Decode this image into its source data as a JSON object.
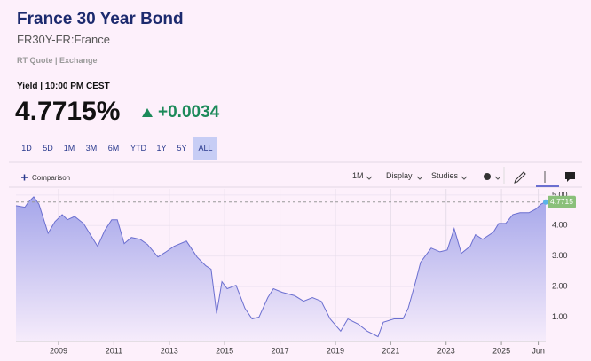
{
  "header": {
    "title": "France 30 Year Bond",
    "symbol": "FR30Y-FR:France",
    "quote_source": "RT Quote | Exchange",
    "yield_time": "Yield | 10:00 PM CEST",
    "price": "4.7715%",
    "change": "+0.0034"
  },
  "range_buttons": [
    "1D",
    "5D",
    "1M",
    "3M",
    "6M",
    "YTD",
    "1Y",
    "5Y",
    "ALL"
  ],
  "toolbar": {
    "comparison": "Comparison",
    "interval": "1M",
    "display": "Display",
    "studies": "Studies"
  },
  "chart_data": {
    "type": "area",
    "color": "#6b6fd0",
    "x": [
      2007.46,
      2007.78,
      2007.91,
      2008.1,
      2008.29,
      2008.62,
      2008.87,
      2009.13,
      2009.32,
      2009.58,
      2009.9,
      2010.15,
      2010.41,
      2010.67,
      2010.92,
      2011.12,
      2011.37,
      2011.63,
      2011.95,
      2012.21,
      2012.59,
      2012.85,
      2013.17,
      2013.62,
      2014.0,
      2014.32,
      2014.51,
      2014.71,
      2014.9,
      2015.09,
      2015.41,
      2015.73,
      2015.99,
      2016.24,
      2016.56,
      2016.76,
      2017.08,
      2017.53,
      2017.85,
      2018.17,
      2018.49,
      2018.81,
      2019.19,
      2019.45,
      2019.83,
      2020.15,
      2020.54,
      2020.73,
      2021.12,
      2021.44,
      2021.63,
      2021.88,
      2022.08,
      2022.46,
      2022.78,
      2023.04,
      2023.29,
      2023.55,
      2023.87,
      2024.06,
      2024.32,
      2024.71,
      2024.9,
      2025.15,
      2025.41,
      2025.67,
      2025.99,
      2026.24,
      2026.44,
      2026.6
    ],
    "values": [
      4.65,
      4.6,
      4.77,
      4.94,
      4.7,
      3.75,
      4.13,
      4.36,
      4.19,
      4.3,
      4.07,
      3.7,
      3.32,
      3.84,
      4.19,
      4.19,
      3.41,
      3.61,
      3.55,
      3.38,
      2.97,
      3.12,
      3.32,
      3.49,
      2.97,
      2.68,
      2.57,
      1.12,
      2.16,
      1.93,
      2.04,
      1.29,
      0.94,
      1.0,
      1.64,
      1.93,
      1.81,
      1.7,
      1.52,
      1.64,
      1.52,
      0.94,
      0.54,
      0.94,
      0.77,
      0.54,
      0.36,
      0.83,
      0.94,
      0.94,
      1.29,
      2.1,
      2.8,
      3.26,
      3.14,
      3.2,
      3.9,
      3.09,
      3.32,
      3.7,
      3.55,
      3.78,
      4.07,
      4.07,
      4.36,
      4.42,
      4.42,
      4.54,
      4.71,
      4.7715
    ],
    "xlim": [
      2007.46,
      2026.6
    ],
    "xticks": [
      2009,
      2011,
      2013,
      2015,
      2017,
      2019,
      2021,
      2023,
      2025,
      {
        "value": 2026.33,
        "label": "Jun"
      }
    ],
    "ylim": [
      0.2,
      5.2
    ],
    "yticks": [
      {
        "value": 1,
        "label": "1.00"
      },
      {
        "value": 2,
        "label": "2.00"
      },
      {
        "value": 3,
        "label": "3.00"
      },
      {
        "value": 4,
        "label": "4.00"
      },
      {
        "value": 5,
        "label": "5.00"
      }
    ],
    "grid": true
  }
}
